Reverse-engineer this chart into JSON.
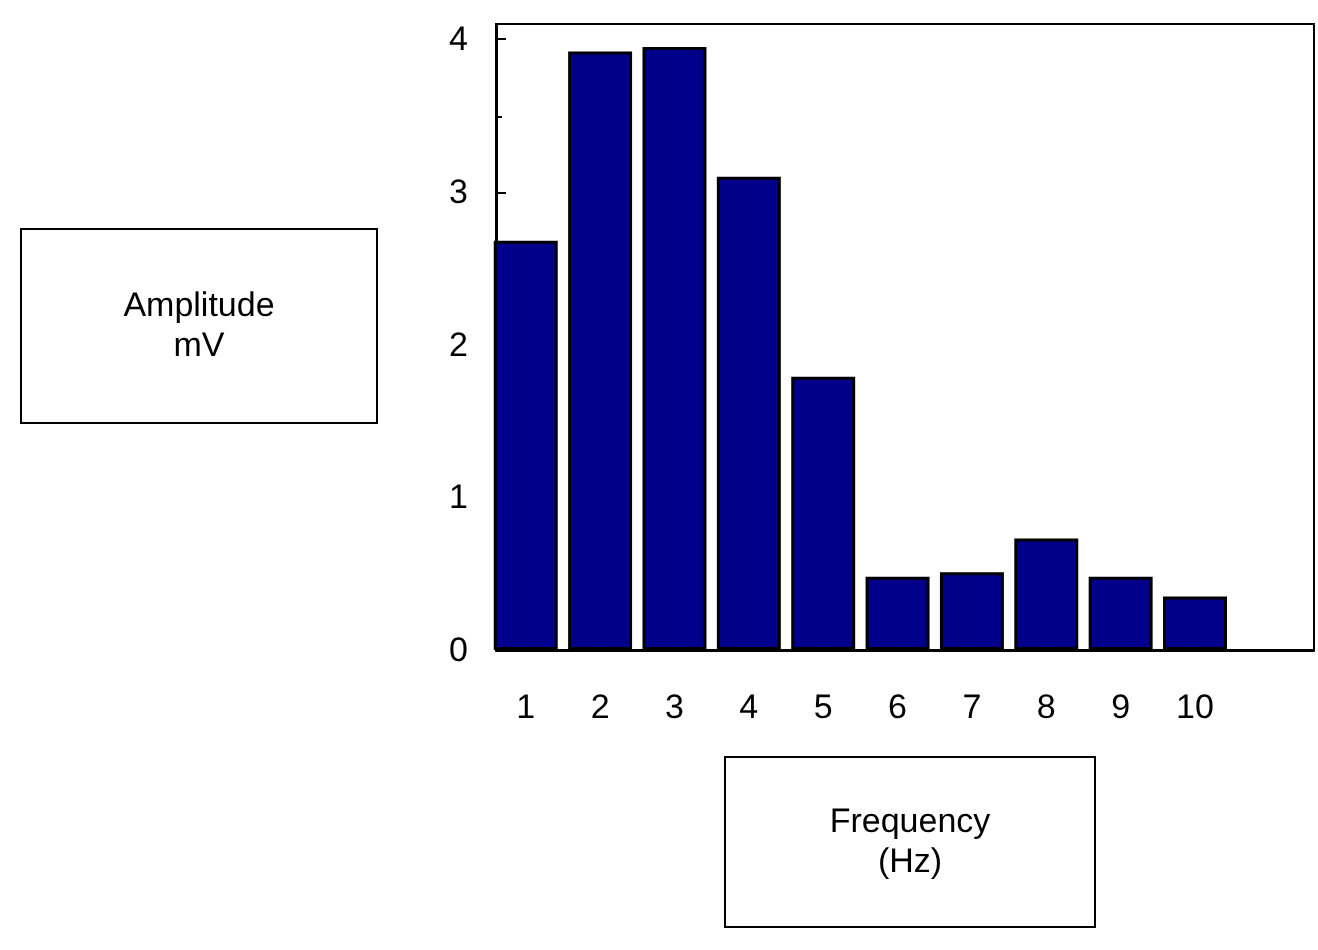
{
  "chart_data": {
    "type": "bar",
    "xlabel": "Frequency\n(Hz)",
    "annotations": [
      "Amplitude\nmV"
    ],
    "x": [
      1,
      2,
      3,
      4,
      5,
      6,
      7,
      8,
      9,
      10
    ],
    "values": [
      2.68,
      3.92,
      3.95,
      3.1,
      1.79,
      0.48,
      0.51,
      0.73,
      0.48,
      0.35
    ],
    "color": "#00008b",
    "xlim": [
      0.6,
      11.6
    ],
    "xticks": [
      1,
      2,
      3,
      4,
      5,
      6,
      7,
      8,
      9,
      10
    ],
    "ylim": [
      0,
      4.1
    ],
    "yticks": [
      0,
      1,
      2,
      3,
      4
    ],
    "grid": false
  }
}
